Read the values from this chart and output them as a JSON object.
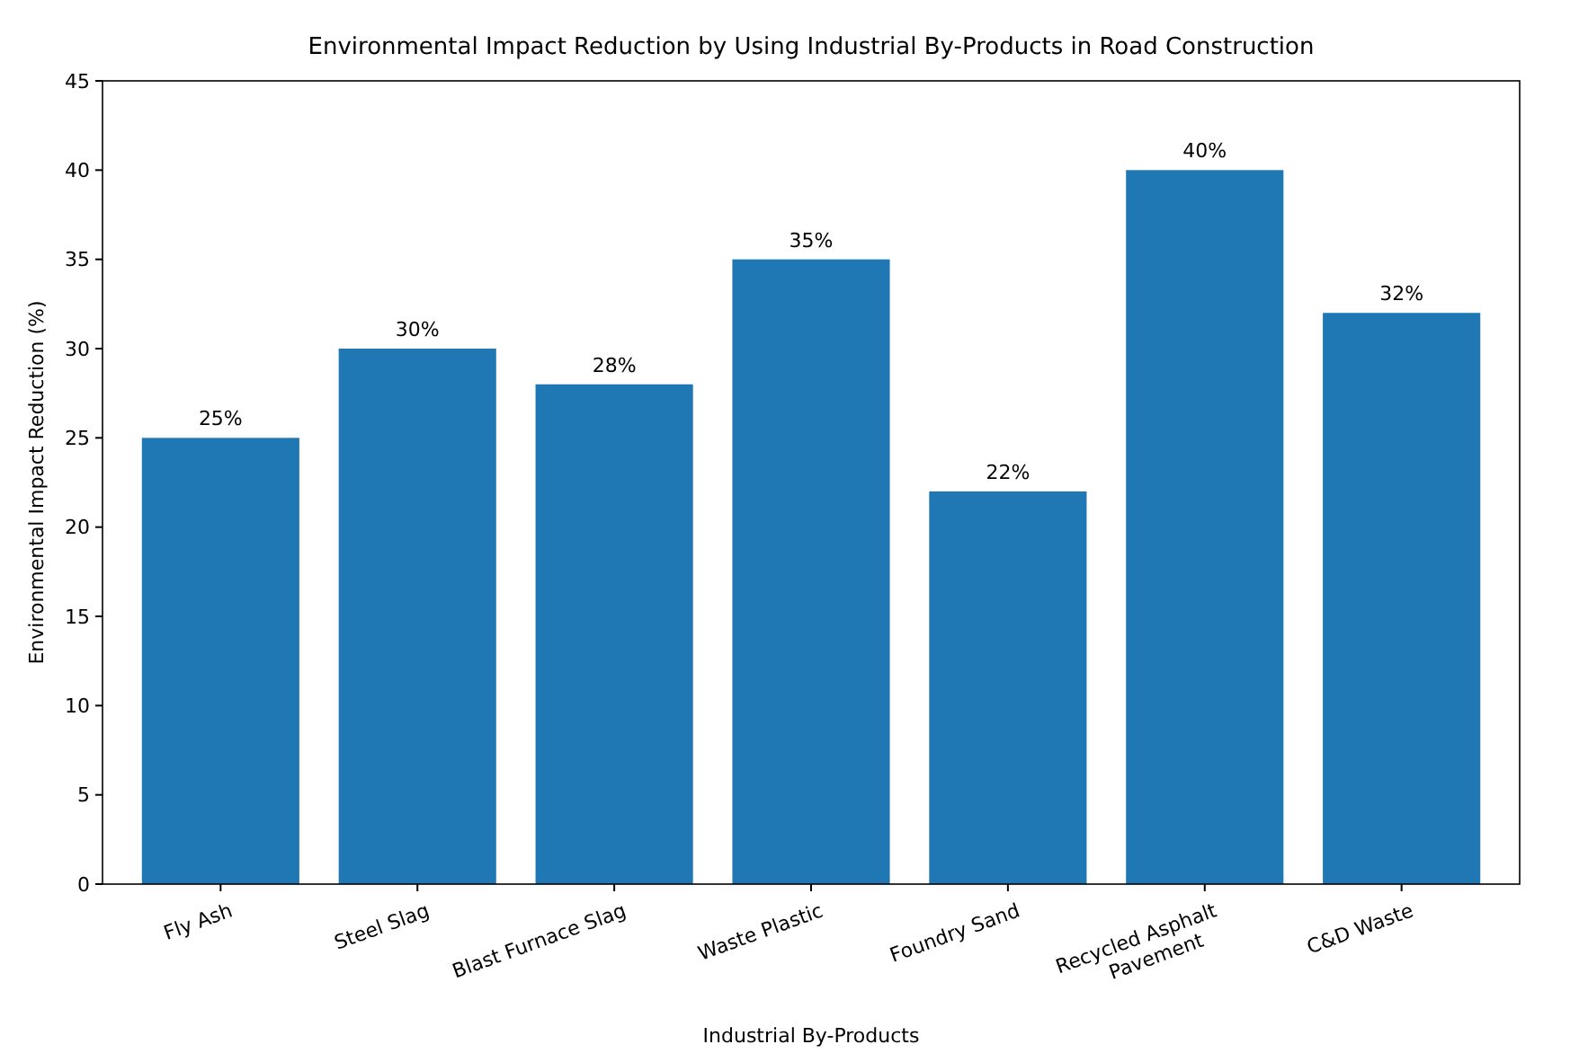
{
  "chart_data": {
    "type": "bar",
    "title": "Environmental Impact Reduction by Using Industrial By-Products in Road Construction",
    "xlabel": "Industrial By-Products",
    "ylabel": "Environmental Impact Reduction (%)",
    "categories": [
      "Fly Ash",
      "Steel Slag",
      "Blast Furnace Slag",
      "Waste Plastic",
      "Foundry Sand",
      "Recycled Asphalt\nPavement",
      "C&D Waste"
    ],
    "values": [
      25,
      30,
      28,
      35,
      22,
      40,
      32
    ],
    "value_labels": [
      "25%",
      "30%",
      "28%",
      "35%",
      "22%",
      "40%",
      "32%"
    ],
    "color": "#1f77b4",
    "ylim": [
      0,
      45
    ],
    "yticks": [
      0,
      5,
      10,
      15,
      20,
      25,
      30,
      35,
      40,
      45
    ],
    "grid": false
  }
}
